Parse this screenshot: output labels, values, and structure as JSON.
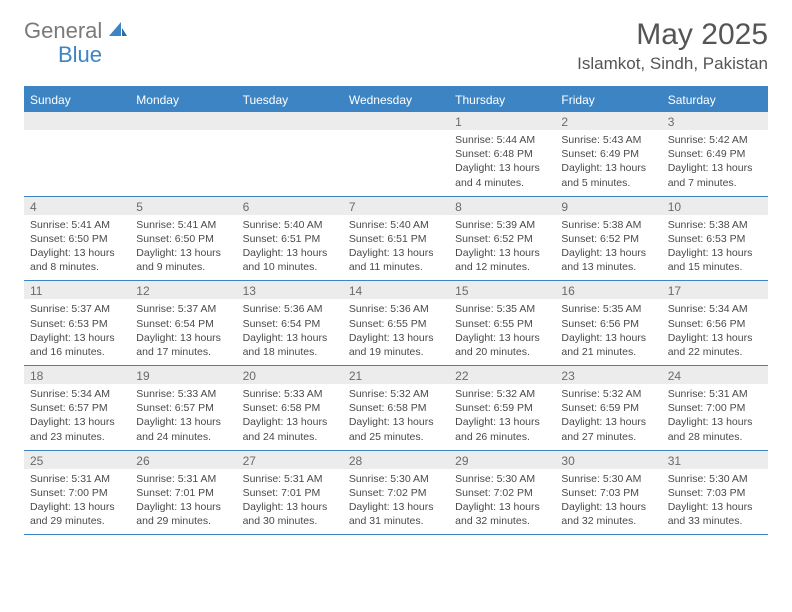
{
  "brand": {
    "part1": "General",
    "part2": "Blue"
  },
  "title": "May 2025",
  "location": "Islamkot, Sindh, Pakistan",
  "colors": {
    "header_blue": "#3d84c4",
    "daynum_bg": "#ececec",
    "text": "#4a4a4a",
    "title_gray": "#555555",
    "logo_gray": "#7a7a7a"
  },
  "dow": [
    "Sunday",
    "Monday",
    "Tuesday",
    "Wednesday",
    "Thursday",
    "Friday",
    "Saturday"
  ],
  "weeks": [
    [
      {
        "n": "",
        "l1": "",
        "l2": "",
        "l3": "",
        "l4": ""
      },
      {
        "n": "",
        "l1": "",
        "l2": "",
        "l3": "",
        "l4": ""
      },
      {
        "n": "",
        "l1": "",
        "l2": "",
        "l3": "",
        "l4": ""
      },
      {
        "n": "",
        "l1": "",
        "l2": "",
        "l3": "",
        "l4": ""
      },
      {
        "n": "1",
        "l1": "Sunrise: 5:44 AM",
        "l2": "Sunset: 6:48 PM",
        "l3": "Daylight: 13 hours",
        "l4": "and 4 minutes."
      },
      {
        "n": "2",
        "l1": "Sunrise: 5:43 AM",
        "l2": "Sunset: 6:49 PM",
        "l3": "Daylight: 13 hours",
        "l4": "and 5 minutes."
      },
      {
        "n": "3",
        "l1": "Sunrise: 5:42 AM",
        "l2": "Sunset: 6:49 PM",
        "l3": "Daylight: 13 hours",
        "l4": "and 7 minutes."
      }
    ],
    [
      {
        "n": "4",
        "l1": "Sunrise: 5:41 AM",
        "l2": "Sunset: 6:50 PM",
        "l3": "Daylight: 13 hours",
        "l4": "and 8 minutes."
      },
      {
        "n": "5",
        "l1": "Sunrise: 5:41 AM",
        "l2": "Sunset: 6:50 PM",
        "l3": "Daylight: 13 hours",
        "l4": "and 9 minutes."
      },
      {
        "n": "6",
        "l1": "Sunrise: 5:40 AM",
        "l2": "Sunset: 6:51 PM",
        "l3": "Daylight: 13 hours",
        "l4": "and 10 minutes."
      },
      {
        "n": "7",
        "l1": "Sunrise: 5:40 AM",
        "l2": "Sunset: 6:51 PM",
        "l3": "Daylight: 13 hours",
        "l4": "and 11 minutes."
      },
      {
        "n": "8",
        "l1": "Sunrise: 5:39 AM",
        "l2": "Sunset: 6:52 PM",
        "l3": "Daylight: 13 hours",
        "l4": "and 12 minutes."
      },
      {
        "n": "9",
        "l1": "Sunrise: 5:38 AM",
        "l2": "Sunset: 6:52 PM",
        "l3": "Daylight: 13 hours",
        "l4": "and 13 minutes."
      },
      {
        "n": "10",
        "l1": "Sunrise: 5:38 AM",
        "l2": "Sunset: 6:53 PM",
        "l3": "Daylight: 13 hours",
        "l4": "and 15 minutes."
      }
    ],
    [
      {
        "n": "11",
        "l1": "Sunrise: 5:37 AM",
        "l2": "Sunset: 6:53 PM",
        "l3": "Daylight: 13 hours",
        "l4": "and 16 minutes."
      },
      {
        "n": "12",
        "l1": "Sunrise: 5:37 AM",
        "l2": "Sunset: 6:54 PM",
        "l3": "Daylight: 13 hours",
        "l4": "and 17 minutes."
      },
      {
        "n": "13",
        "l1": "Sunrise: 5:36 AM",
        "l2": "Sunset: 6:54 PM",
        "l3": "Daylight: 13 hours",
        "l4": "and 18 minutes."
      },
      {
        "n": "14",
        "l1": "Sunrise: 5:36 AM",
        "l2": "Sunset: 6:55 PM",
        "l3": "Daylight: 13 hours",
        "l4": "and 19 minutes."
      },
      {
        "n": "15",
        "l1": "Sunrise: 5:35 AM",
        "l2": "Sunset: 6:55 PM",
        "l3": "Daylight: 13 hours",
        "l4": "and 20 minutes."
      },
      {
        "n": "16",
        "l1": "Sunrise: 5:35 AM",
        "l2": "Sunset: 6:56 PM",
        "l3": "Daylight: 13 hours",
        "l4": "and 21 minutes."
      },
      {
        "n": "17",
        "l1": "Sunrise: 5:34 AM",
        "l2": "Sunset: 6:56 PM",
        "l3": "Daylight: 13 hours",
        "l4": "and 22 minutes."
      }
    ],
    [
      {
        "n": "18",
        "l1": "Sunrise: 5:34 AM",
        "l2": "Sunset: 6:57 PM",
        "l3": "Daylight: 13 hours",
        "l4": "and 23 minutes."
      },
      {
        "n": "19",
        "l1": "Sunrise: 5:33 AM",
        "l2": "Sunset: 6:57 PM",
        "l3": "Daylight: 13 hours",
        "l4": "and 24 minutes."
      },
      {
        "n": "20",
        "l1": "Sunrise: 5:33 AM",
        "l2": "Sunset: 6:58 PM",
        "l3": "Daylight: 13 hours",
        "l4": "and 24 minutes."
      },
      {
        "n": "21",
        "l1": "Sunrise: 5:32 AM",
        "l2": "Sunset: 6:58 PM",
        "l3": "Daylight: 13 hours",
        "l4": "and 25 minutes."
      },
      {
        "n": "22",
        "l1": "Sunrise: 5:32 AM",
        "l2": "Sunset: 6:59 PM",
        "l3": "Daylight: 13 hours",
        "l4": "and 26 minutes."
      },
      {
        "n": "23",
        "l1": "Sunrise: 5:32 AM",
        "l2": "Sunset: 6:59 PM",
        "l3": "Daylight: 13 hours",
        "l4": "and 27 minutes."
      },
      {
        "n": "24",
        "l1": "Sunrise: 5:31 AM",
        "l2": "Sunset: 7:00 PM",
        "l3": "Daylight: 13 hours",
        "l4": "and 28 minutes."
      }
    ],
    [
      {
        "n": "25",
        "l1": "Sunrise: 5:31 AM",
        "l2": "Sunset: 7:00 PM",
        "l3": "Daylight: 13 hours",
        "l4": "and 29 minutes."
      },
      {
        "n": "26",
        "l1": "Sunrise: 5:31 AM",
        "l2": "Sunset: 7:01 PM",
        "l3": "Daylight: 13 hours",
        "l4": "and 29 minutes."
      },
      {
        "n": "27",
        "l1": "Sunrise: 5:31 AM",
        "l2": "Sunset: 7:01 PM",
        "l3": "Daylight: 13 hours",
        "l4": "and 30 minutes."
      },
      {
        "n": "28",
        "l1": "Sunrise: 5:30 AM",
        "l2": "Sunset: 7:02 PM",
        "l3": "Daylight: 13 hours",
        "l4": "and 31 minutes."
      },
      {
        "n": "29",
        "l1": "Sunrise: 5:30 AM",
        "l2": "Sunset: 7:02 PM",
        "l3": "Daylight: 13 hours",
        "l4": "and 32 minutes."
      },
      {
        "n": "30",
        "l1": "Sunrise: 5:30 AM",
        "l2": "Sunset: 7:03 PM",
        "l3": "Daylight: 13 hours",
        "l4": "and 32 minutes."
      },
      {
        "n": "31",
        "l1": "Sunrise: 5:30 AM",
        "l2": "Sunset: 7:03 PM",
        "l3": "Daylight: 13 hours",
        "l4": "and 33 minutes."
      }
    ]
  ]
}
